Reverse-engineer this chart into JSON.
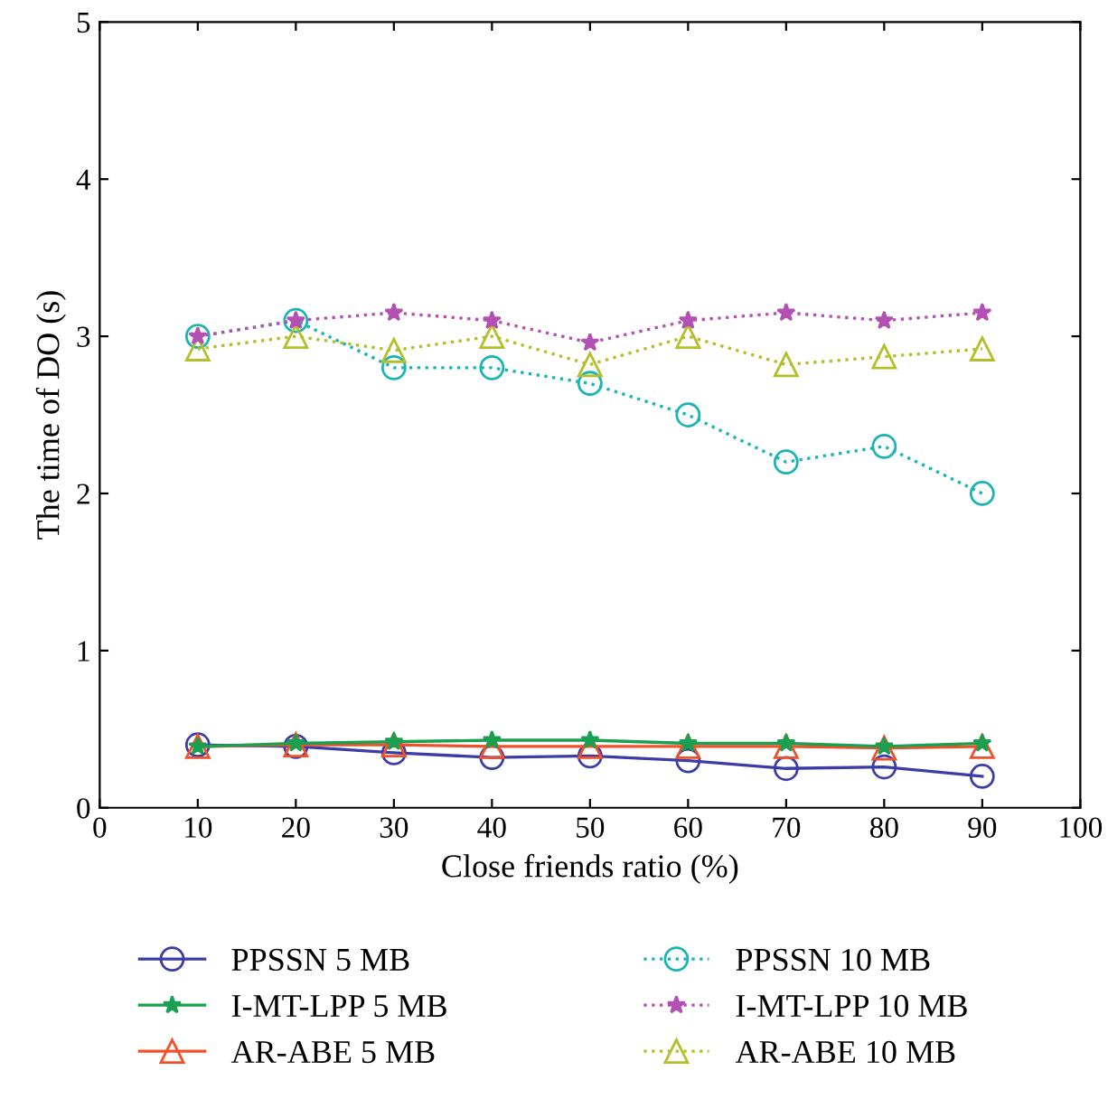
{
  "chart_data": {
    "type": "line",
    "xlabel": "Close friends ratio (%)",
    "ylabel": "The time of DO (s)",
    "x": [
      10,
      20,
      30,
      40,
      50,
      60,
      70,
      80,
      90
    ],
    "xlim": [
      0,
      100
    ],
    "xticks": [
      0,
      10,
      20,
      30,
      40,
      50,
      60,
      70,
      80,
      90,
      100
    ],
    "ylim": [
      0,
      5
    ],
    "yticks": [
      0,
      1,
      2,
      3,
      4,
      5
    ],
    "grid": false,
    "legend": "bottom",
    "series": [
      {
        "name": "PPSSN 5 MB",
        "color": "#3c3ca8",
        "marker": "circle",
        "line_style": "solid",
        "values": [
          0.4,
          0.39,
          0.35,
          0.32,
          0.33,
          0.3,
          0.25,
          0.26,
          0.2
        ]
      },
      {
        "name": "I-MT-LPP 5 MB",
        "color": "#1aa050",
        "marker": "star",
        "line_style": "solid",
        "values": [
          0.39,
          0.41,
          0.42,
          0.43,
          0.43,
          0.41,
          0.41,
          0.39,
          0.41
        ]
      },
      {
        "name": "AR-ABE 5 MB",
        "color": "#f0502a",
        "marker": "triangle",
        "line_style": "solid",
        "values": [
          0.39,
          0.4,
          0.4,
          0.39,
          0.39,
          0.39,
          0.39,
          0.38,
          0.39
        ]
      },
      {
        "name": "PPSSN 10 MB",
        "color": "#1ab4b4",
        "marker": "circle",
        "line_style": "dotted",
        "values": [
          3.0,
          3.1,
          2.8,
          2.8,
          2.7,
          2.5,
          2.2,
          2.3,
          2.0
        ]
      },
      {
        "name": "I-MT-LPP 10 MB",
        "color": "#b450b4",
        "marker": "star",
        "line_style": "dotted",
        "values": [
          3.0,
          3.1,
          3.15,
          3.1,
          2.96,
          3.1,
          3.15,
          3.1,
          3.15
        ]
      },
      {
        "name": "AR-ABE 10 MB",
        "color": "#b4be28",
        "marker": "triangle",
        "line_style": "dotted",
        "values": [
          2.92,
          3.0,
          2.91,
          3.0,
          2.82,
          3.0,
          2.82,
          2.87,
          2.92
        ]
      }
    ]
  }
}
